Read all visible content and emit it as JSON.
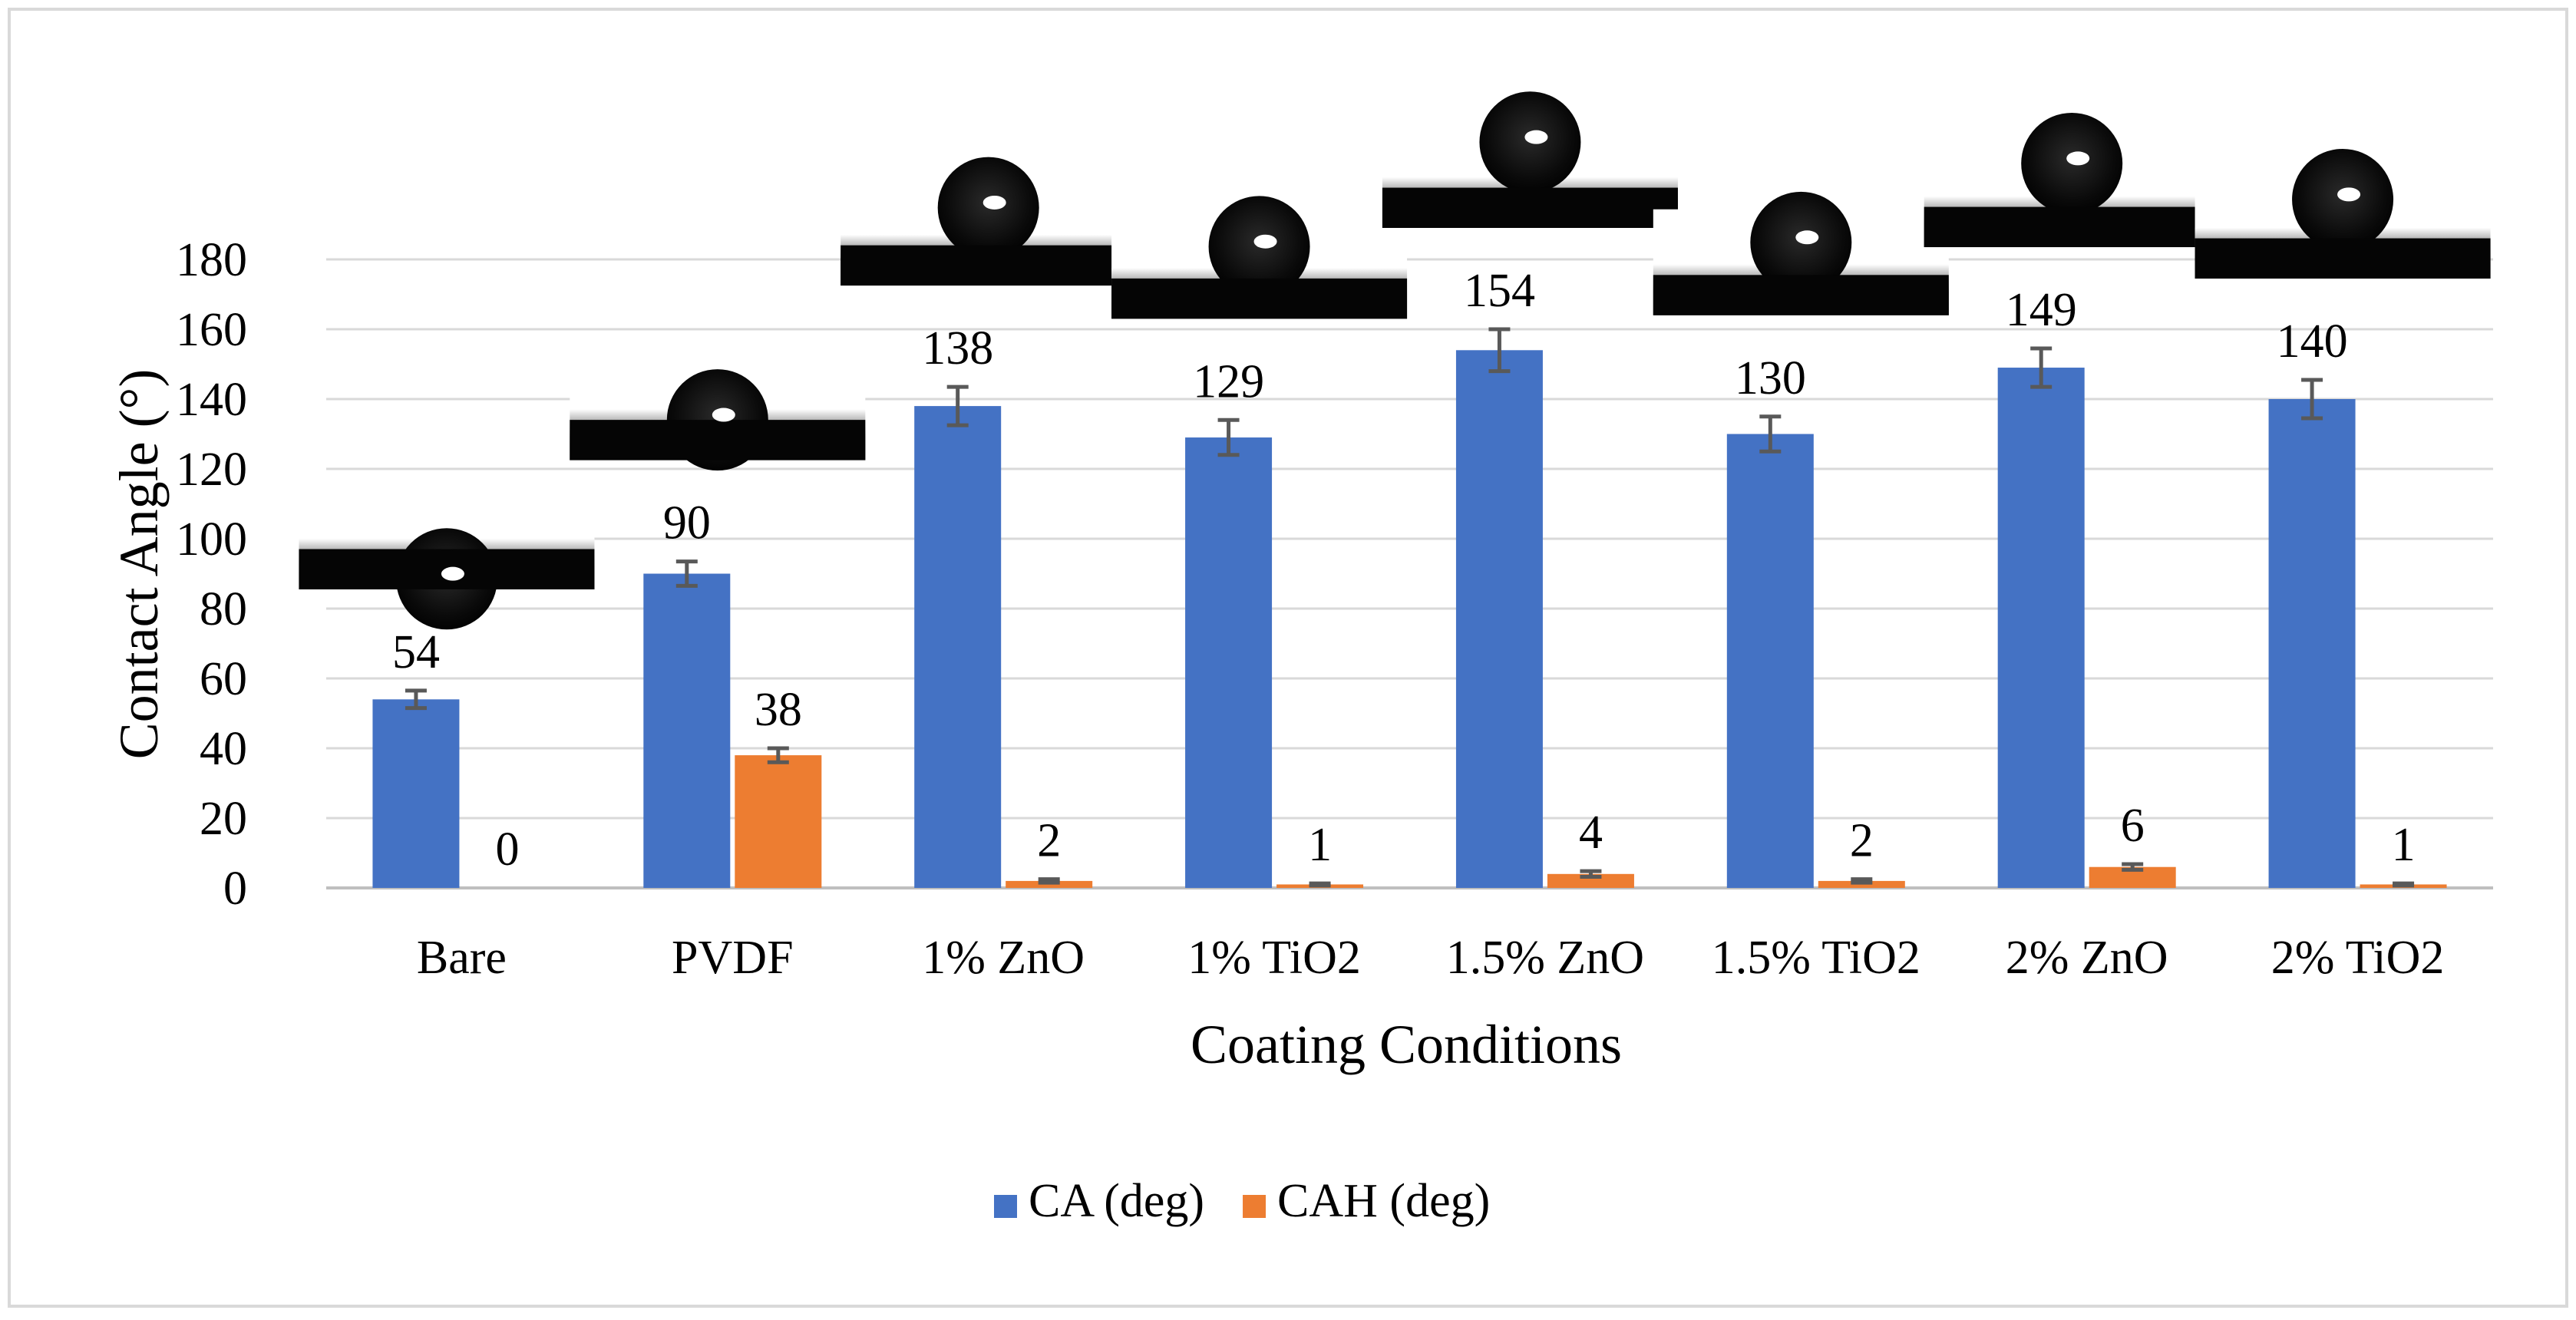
{
  "chart_data": {
    "type": "bar",
    "title": "",
    "xlabel": "Coating Conditions",
    "ylabel": "Contact Angle (°)",
    "ylim": [
      0,
      180
    ],
    "yticks": [
      0,
      20,
      40,
      60,
      80,
      100,
      120,
      140,
      160,
      180
    ],
    "grid": true,
    "legend_position": "bottom",
    "categories": [
      "Bare",
      "PVDF",
      "1% ZnO",
      "1% TiO2",
      "1.5% ZnO",
      "1.5% TiO2",
      "2% ZnO",
      "2% TiO2"
    ],
    "series": [
      {
        "name": "CA (deg)",
        "color": "#4472C4",
        "values": [
          54,
          90,
          138,
          129,
          154,
          130,
          149,
          140
        ],
        "labels": [
          "54",
          "90",
          "138",
          "129",
          "154",
          "130",
          "149",
          "140"
        ],
        "errors": [
          2.5,
          3.5,
          5.5,
          5,
          6,
          5,
          5.5,
          5.5
        ]
      },
      {
        "name": "CAH (deg)",
        "color": "#ED7D31",
        "values": [
          0,
          38,
          2,
          1,
          4,
          2,
          6,
          1
        ],
        "labels": [
          "0",
          "38",
          "2",
          "1",
          "4",
          "2",
          "6",
          "1"
        ],
        "errors": [
          0,
          2,
          0.5,
          0.3,
          0.8,
          0.5,
          0.8,
          0.3
        ]
      }
    ],
    "droplet_images": [
      "Bare",
      "PVDF",
      "1% ZnO",
      "1% TiO2",
      "1.5% ZnO",
      "1.5% TiO2",
      "2% ZnO",
      "2% TiO2"
    ]
  }
}
